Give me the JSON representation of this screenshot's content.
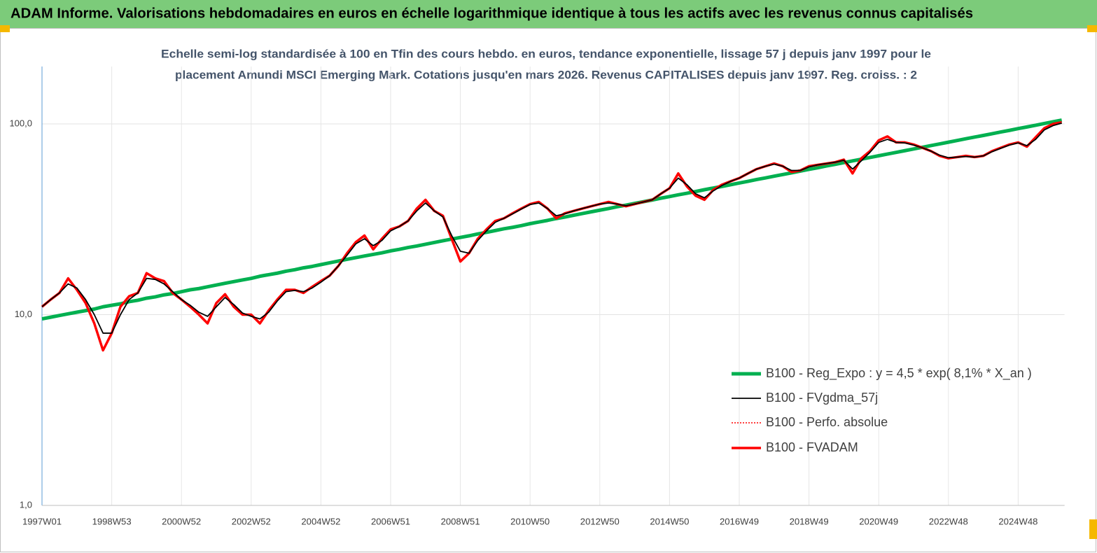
{
  "chart_data": {
    "type": "line",
    "title": "ADAM Informe. Valorisations hebdomadaires en euros en échelle logarithmique identique à tous les actifs avec les revenus connus capitalisés",
    "subtitle": [
      "Echelle semi-log standardisée à 100 en Tfin des cours hebdo. en euros, tendance exponentielle, lissage 57 j depuis janv 1997 pour le",
      "placement Amundi MSCI Emerging Mark. Cotations jusqu'en mars 2026. Revenus CAPITALISES depuis janv 1997. Reg. croiss. : 2"
    ],
    "categories": [
      "1997W01",
      null,
      null,
      null,
      null,
      null,
      null,
      null,
      "1998W53",
      null,
      null,
      null,
      null,
      null,
      null,
      null,
      "2000W52",
      null,
      null,
      null,
      null,
      null,
      null,
      null,
      "2002W52",
      null,
      null,
      null,
      null,
      null,
      null,
      null,
      "2004W52",
      null,
      null,
      null,
      null,
      null,
      null,
      null,
      "2006W51",
      null,
      null,
      null,
      null,
      null,
      null,
      null,
      "2008W51",
      null,
      null,
      null,
      null,
      null,
      null,
      null,
      "2010W50",
      null,
      null,
      null,
      null,
      null,
      null,
      null,
      "2012W50",
      null,
      null,
      null,
      null,
      null,
      null,
      null,
      "2014W50",
      null,
      null,
      null,
      null,
      null,
      null,
      null,
      "2016W49",
      null,
      null,
      null,
      null,
      null,
      null,
      null,
      "2018W49",
      null,
      null,
      null,
      null,
      null,
      null,
      null,
      "2020W49",
      null,
      null,
      null,
      null,
      null,
      null,
      null,
      "2022W48",
      null,
      null,
      null,
      null,
      null,
      null,
      null,
      "2024W48",
      null,
      null,
      null,
      null,
      null
    ],
    "log_y": true,
    "ylim": [
      1,
      200
    ],
    "yticks": [
      {
        "value": 1,
        "label": "1,0"
      },
      {
        "value": 10,
        "label": "10,0"
      },
      {
        "value": 100,
        "label": "100,0"
      }
    ],
    "grid": true,
    "legend": "lower-right",
    "series": [
      {
        "name": "B100 - Reg_Expo : y = 4,5 *  exp( 8,1% *  X_an )",
        "color": "#00b050",
        "style": "solid",
        "values": [
          9.5,
          9.7,
          9.9,
          10.1,
          10.3,
          10.5,
          10.7,
          11.0,
          11.2,
          11.4,
          11.7,
          11.9,
          12.2,
          12.4,
          12.7,
          12.9,
          13.2,
          13.5,
          13.7,
          14.0,
          14.3,
          14.6,
          14.9,
          15.2,
          15.5,
          15.9,
          16.2,
          16.5,
          16.9,
          17.2,
          17.6,
          17.9,
          18.3,
          18.7,
          19.1,
          19.5,
          19.9,
          20.3,
          20.7,
          21.1,
          21.6,
          22.0,
          22.5,
          22.9,
          23.4,
          23.9,
          24.4,
          24.9,
          25.4,
          25.9,
          26.5,
          27.0,
          27.6,
          28.2,
          28.7,
          29.3,
          30.0,
          30.6,
          31.2,
          31.9,
          32.5,
          33.2,
          33.9,
          34.6,
          35.3,
          36.0,
          36.8,
          37.5,
          38.3,
          39.1,
          39.9,
          40.8,
          41.6,
          42.5,
          43.3,
          44.2,
          45.2,
          46.1,
          47.0,
          48.0,
          49.0,
          50.0,
          51.1,
          52.1,
          53.2,
          54.3,
          55.4,
          56.6,
          57.8,
          58.9,
          60.2,
          61.4,
          62.7,
          64.0,
          65.3,
          66.7,
          68.1,
          69.5,
          70.9,
          72.4,
          73.9,
          75.4,
          77.0,
          78.6,
          80.2,
          81.9,
          83.6,
          85.3,
          87.0,
          88.8,
          90.7,
          92.5,
          94.5,
          96.4,
          98.4,
          100.5,
          102.6,
          104.7
        ]
      },
      {
        "name": "B100 - FVgdma_57j",
        "color": "#000000",
        "style": "solid",
        "values": [
          11,
          12,
          13,
          14.5,
          13.8,
          12,
          10,
          8,
          8,
          10,
          12,
          13,
          15.5,
          15.3,
          14.5,
          13.2,
          12,
          11.2,
          10.3,
          9.8,
          11,
          12.3,
          11.3,
          10.2,
          9.8,
          9.5,
          10.3,
          11.8,
          13.2,
          13.4,
          13.2,
          13.8,
          14.8,
          16,
          18,
          20.5,
          23.5,
          25,
          23,
          24.5,
          27.5,
          29,
          31,
          35,
          38.5,
          35,
          32.5,
          26,
          21.5,
          21,
          24.5,
          27.5,
          30.5,
          32,
          33.8,
          35.8,
          37.8,
          38.5,
          36,
          33,
          33.8,
          35,
          36,
          37,
          38,
          38.5,
          38,
          37.2,
          38,
          39,
          40,
          43,
          46,
          52,
          48,
          43,
          41,
          44.5,
          47.5,
          50,
          52,
          55,
          58,
          60,
          61.5,
          60,
          57,
          57,
          59.5,
          61,
          62,
          63,
          64.5,
          58,
          64,
          71,
          80,
          83,
          80,
          79.5,
          77.5,
          75,
          72,
          68.5,
          66.5,
          67,
          67.5,
          67,
          68,
          71.5,
          74.5,
          77.5,
          79.5,
          77,
          83,
          93,
          98,
          101
        ]
      },
      {
        "name": "B100 - Perfo. absolue",
        "color": "#ff0000",
        "style": "dotted",
        "values": [
          11,
          12,
          13,
          15.5,
          13.5,
          11.5,
          9,
          6.5,
          8,
          11,
          12.5,
          13,
          16.5,
          15.5,
          15,
          13,
          12,
          11,
          10,
          9,
          11.5,
          12.8,
          11,
          10,
          10,
          9,
          10.5,
          12,
          13.5,
          13.5,
          13,
          14,
          15,
          16,
          18,
          21,
          24,
          26,
          22,
          25,
          28,
          29,
          31,
          36,
          40,
          35,
          33,
          25,
          19,
          21,
          25,
          28,
          31,
          32,
          34,
          36,
          38,
          39,
          36,
          32,
          34,
          35,
          36,
          37,
          38,
          39,
          38,
          37,
          38,
          39,
          40,
          43,
          46,
          55,
          47,
          42,
          40,
          45,
          48,
          50,
          52,
          55,
          58,
          60,
          62,
          60,
          56,
          57,
          60,
          61,
          62,
          63,
          65,
          55,
          66,
          72,
          82,
          86,
          80,
          80,
          78,
          75,
          72,
          68,
          66,
          67,
          68,
          67,
          68,
          72,
          75,
          78,
          80,
          76,
          85,
          95,
          100,
          102
        ]
      },
      {
        "name": "B100 - FVADAM",
        "color": "#ff0000",
        "style": "solid",
        "values": [
          11,
          12,
          13,
          15.5,
          13.5,
          11.5,
          9,
          6.5,
          8,
          11,
          12.5,
          13,
          16.5,
          15.5,
          15,
          13,
          12,
          11,
          10,
          9,
          11.5,
          12.8,
          11,
          10,
          10,
          9,
          10.5,
          12,
          13.5,
          13.5,
          13,
          14,
          15,
          16,
          18,
          21,
          24,
          26,
          22,
          25,
          28,
          29,
          31,
          36,
          40,
          35,
          33,
          25,
          19,
          21,
          25,
          28,
          31,
          32,
          34,
          36,
          38,
          39,
          36,
          32,
          34,
          35,
          36,
          37,
          38,
          39,
          38,
          37,
          38,
          39,
          40,
          43,
          46,
          55,
          47,
          42,
          40,
          45,
          48,
          50,
          52,
          55,
          58,
          60,
          62,
          60,
          56,
          57,
          60,
          61,
          62,
          63,
          65,
          55,
          66,
          72,
          82,
          86,
          80,
          80,
          78,
          75,
          72,
          68,
          66,
          67,
          68,
          67,
          68,
          72,
          75,
          78,
          80,
          76,
          85,
          95,
          100,
          102
        ]
      }
    ]
  }
}
